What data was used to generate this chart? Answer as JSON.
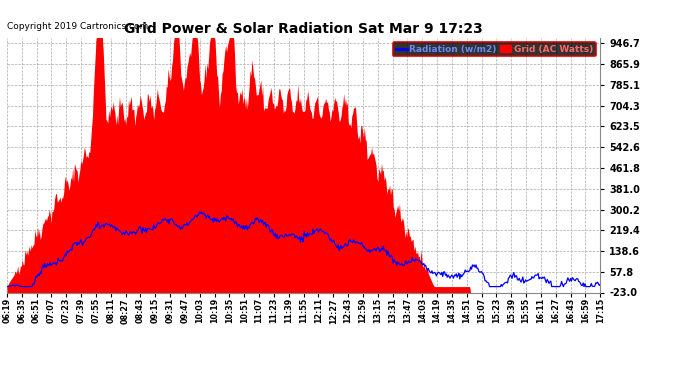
{
  "title": "Grid Power & Solar Radiation Sat Mar 9 17:23",
  "copyright": "Copyright 2019 Cartronics.com",
  "legend_radiation": "Radiation (w/m2)",
  "legend_grid": "Grid (AC Watts)",
  "ylim": [
    -23.0,
    970.0
  ],
  "ytick_vals": [
    -23.0,
    57.8,
    138.6,
    219.4,
    300.2,
    381.0,
    461.8,
    542.6,
    623.5,
    704.3,
    785.1,
    865.9,
    946.7
  ],
  "bg_color": "#ffffff",
  "fill_color": "#ff0000",
  "line_color": "#0000ff",
  "grid_color": "#aaaaaa",
  "figsize": [
    6.9,
    3.75
  ],
  "dpi": 100,
  "xtick_labels": [
    "06:19",
    "06:35",
    "06:51",
    "07:07",
    "07:23",
    "07:39",
    "07:55",
    "08:11",
    "08:27",
    "08:43",
    "09:15",
    "09:31",
    "09:47",
    "10:03",
    "10:19",
    "10:35",
    "10:51",
    "11:07",
    "11:23",
    "11:39",
    "11:55",
    "12:11",
    "12:27",
    "12:43",
    "12:59",
    "13:15",
    "13:31",
    "13:47",
    "14:03",
    "14:19",
    "14:35",
    "14:51",
    "15:07",
    "15:23",
    "15:39",
    "15:55",
    "16:11",
    "16:27",
    "16:43",
    "16:59",
    "17:15"
  ]
}
